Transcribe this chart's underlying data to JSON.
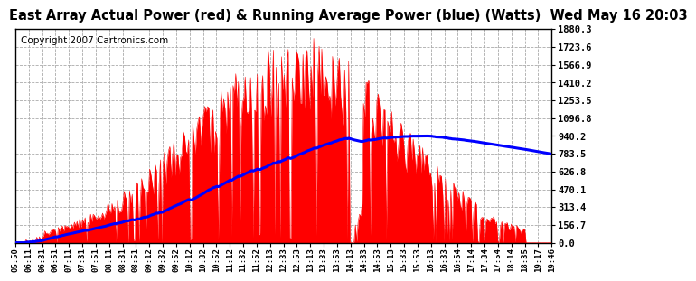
{
  "title": "East Array Actual Power (red) & Running Average Power (blue) (Watts)  Wed May 16 20:03",
  "copyright": "Copyright 2007 Cartronics.com",
  "ymax": 1880.3,
  "yticks": [
    0.0,
    156.7,
    313.4,
    470.1,
    626.8,
    783.5,
    940.2,
    1096.8,
    1253.5,
    1410.2,
    1566.9,
    1723.6,
    1880.3
  ],
  "xtick_labels": [
    "05:50",
    "06:11",
    "06:31",
    "06:51",
    "07:11",
    "07:31",
    "07:51",
    "08:11",
    "08:31",
    "08:51",
    "09:12",
    "09:32",
    "09:52",
    "10:12",
    "10:32",
    "10:52",
    "11:12",
    "11:32",
    "11:52",
    "12:13",
    "12:33",
    "12:53",
    "13:13",
    "13:33",
    "13:53",
    "14:13",
    "14:33",
    "14:53",
    "15:13",
    "15:33",
    "15:53",
    "16:13",
    "16:33",
    "16:54",
    "17:14",
    "17:34",
    "17:54",
    "18:14",
    "18:35",
    "19:17",
    "19:46"
  ],
  "background_color": "#ffffff",
  "plot_bg_color": "#ffffff",
  "red_color": "#ff0000",
  "blue_color": "#0000ff",
  "grid_color": "#aaaaaa",
  "title_fontsize": 10.5,
  "copyright_fontsize": 7.5
}
